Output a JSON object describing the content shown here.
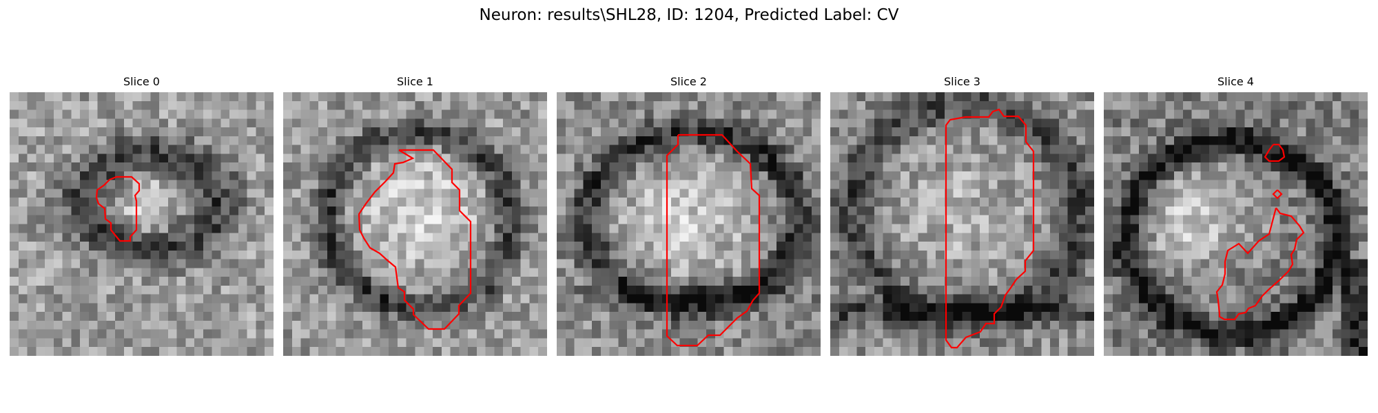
{
  "figure": {
    "title": "Neuron: results\\SHL28, ID: 1204, Predicted Label: CV",
    "contour_color": "#ff0000",
    "colormap": "gray"
  },
  "slices": [
    {
      "title": "Slice 0"
    },
    {
      "title": "Slice 1"
    },
    {
      "title": "Slice 2"
    },
    {
      "title": "Slice 3"
    },
    {
      "title": "Slice 4"
    }
  ]
}
